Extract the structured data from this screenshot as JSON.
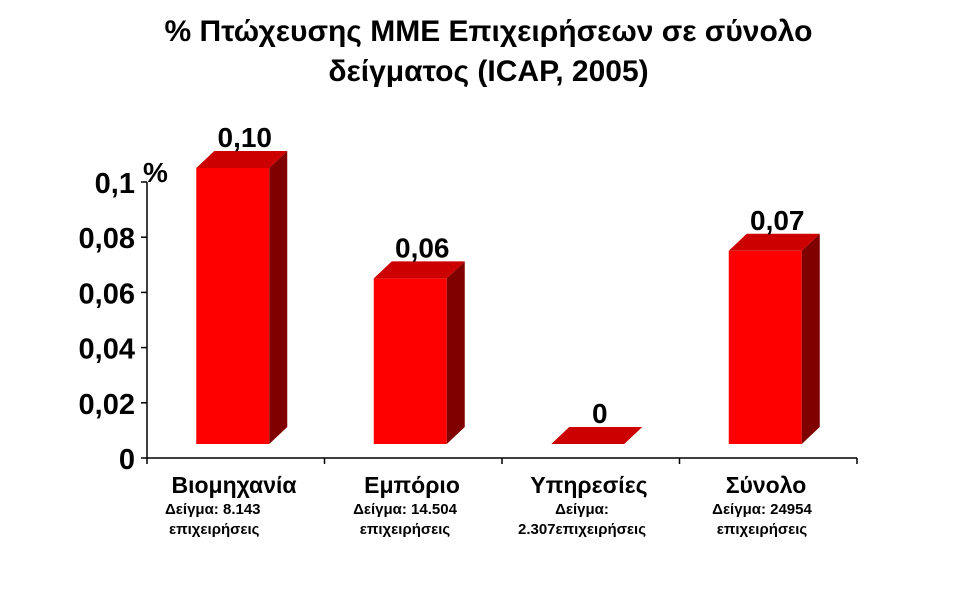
{
  "chart_data": {
    "type": "bar",
    "title_lines": [
      "% Πτώχευσης ΜΜΕ Επιχειρήσεων σε σύνολο",
      "δείγματος (ICAP, 2005)"
    ],
    "ylabel": "%",
    "ylim": [
      0,
      0.1
    ],
    "yticks": [
      "0",
      "0,02",
      "0,04",
      "0,06",
      "0,08",
      "0,1"
    ],
    "categories": [
      "Βιομηχανία",
      "Εμπόριο",
      "Υπηρεσίες",
      "Σύνολο"
    ],
    "values": [
      0.1,
      0.06,
      0,
      0.07
    ],
    "data_labels": [
      "0,10",
      "0,06",
      "0",
      "0,07"
    ],
    "notes": [
      [
        "Δείγμα: 8.143",
        "επιχειρήσεις"
      ],
      [
        "Δείγμα: 14.504",
        "επιχειρήσεις"
      ],
      [
        "Δείγμα:",
        "2.307επιχειρήσεις"
      ],
      [
        "Δείγμα: 24954",
        "επιχειρήσεις"
      ]
    ],
    "bar_color": "#ff0000",
    "bar_top_color": "#cc0000",
    "bar_side_color": "#800000",
    "grid": false
  }
}
